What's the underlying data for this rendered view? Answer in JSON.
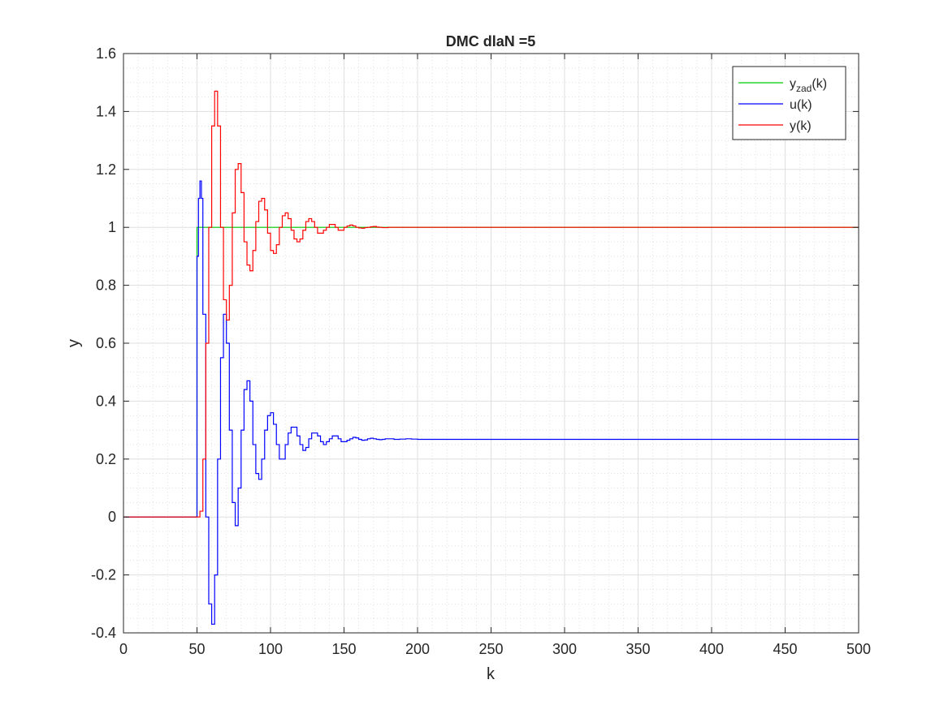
{
  "chart_data": {
    "type": "line",
    "title": "DMC dlaN =5",
    "xlabel": "k",
    "ylabel": "y",
    "xlim": [
      0,
      500
    ],
    "ylim": [
      -0.4,
      1.6
    ],
    "xticks": [
      0,
      50,
      100,
      150,
      200,
      250,
      300,
      350,
      400,
      450,
      500
    ],
    "yticks": [
      -0.4,
      -0.2,
      0,
      0.2,
      0.4,
      0.6,
      0.8,
      1,
      1.2,
      1.4,
      1.6
    ],
    "xtick_labels": [
      "0",
      "50",
      "100",
      "150",
      "200",
      "250",
      "300",
      "350",
      "400",
      "450",
      "500"
    ],
    "ytick_labels": [
      "-0.4",
      "-0.2",
      "0",
      "0.2",
      "0.4",
      "0.6",
      "0.8",
      "1",
      "1.2",
      "1.4",
      "1.6"
    ],
    "grid": true,
    "minor_grid": true,
    "legend_position": "top-right",
    "step_style": "stairs",
    "series": [
      {
        "name": "y_zad(k)",
        "legend_base": "y",
        "legend_sub": "zad",
        "legend_suffix": "(k)",
        "color": "#00cc00",
        "x": [
          0,
          50,
          500
        ],
        "values": [
          0,
          1,
          1
        ]
      },
      {
        "name": "u(k)",
        "legend_base": "u(k)",
        "legend_sub": "",
        "legend_suffix": "",
        "color": "#0000ff",
        "x": [
          0,
          50,
          51,
          52,
          53,
          54,
          56,
          58,
          60,
          62,
          64,
          66,
          68,
          70,
          72,
          74,
          76,
          78,
          80,
          82,
          84,
          86,
          88,
          90,
          92,
          94,
          96,
          98,
          100,
          102,
          104,
          106,
          108,
          110,
          112,
          114,
          116,
          118,
          120,
          122,
          124,
          126,
          128,
          130,
          132,
          134,
          136,
          138,
          140,
          142,
          144,
          146,
          148,
          150,
          152,
          154,
          156,
          158,
          160,
          162,
          164,
          166,
          168,
          170,
          172,
          174,
          176,
          178,
          180,
          184,
          188,
          192,
          196,
          200,
          210,
          220,
          230,
          500
        ],
        "values": [
          0,
          0.9,
          1.1,
          1.16,
          1.1,
          0.7,
          0.0,
          -0.3,
          -0.37,
          -0.2,
          0.2,
          0.55,
          0.7,
          0.6,
          0.3,
          0.05,
          -0.03,
          0.1,
          0.3,
          0.44,
          0.47,
          0.4,
          0.25,
          0.15,
          0.13,
          0.2,
          0.3,
          0.35,
          0.36,
          0.32,
          0.25,
          0.2,
          0.2,
          0.25,
          0.29,
          0.31,
          0.31,
          0.28,
          0.25,
          0.23,
          0.24,
          0.27,
          0.29,
          0.29,
          0.28,
          0.26,
          0.25,
          0.26,
          0.27,
          0.28,
          0.28,
          0.27,
          0.26,
          0.26,
          0.265,
          0.27,
          0.275,
          0.273,
          0.268,
          0.265,
          0.266,
          0.27,
          0.272,
          0.27,
          0.268,
          0.267,
          0.268,
          0.27,
          0.27,
          0.268,
          0.269,
          0.27,
          0.269,
          0.268,
          0.268,
          0.268,
          0.268,
          0.268
        ]
      },
      {
        "name": "y(k)",
        "legend_base": "y(k)",
        "legend_sub": "",
        "legend_suffix": "",
        "color": "#ff0000",
        "x": [
          0,
          52,
          54,
          56,
          58,
          60,
          62,
          64,
          66,
          68,
          70,
          72,
          74,
          76,
          78,
          80,
          82,
          84,
          86,
          88,
          90,
          92,
          94,
          96,
          98,
          100,
          102,
          104,
          106,
          108,
          110,
          112,
          114,
          116,
          118,
          120,
          122,
          124,
          126,
          128,
          130,
          132,
          134,
          136,
          138,
          140,
          142,
          144,
          146,
          148,
          150,
          152,
          154,
          156,
          158,
          160,
          162,
          164,
          166,
          168,
          170,
          172,
          174,
          176,
          178,
          180,
          185,
          190,
          195,
          200,
          210,
          220,
          500
        ],
        "values": [
          0,
          0.02,
          0.2,
          0.6,
          1.0,
          1.35,
          1.47,
          1.35,
          1.0,
          0.75,
          0.68,
          0.8,
          1.05,
          1.2,
          1.22,
          1.12,
          0.95,
          0.87,
          0.85,
          0.92,
          1.02,
          1.09,
          1.1,
          1.06,
          0.98,
          0.92,
          0.91,
          0.94,
          1.0,
          1.04,
          1.05,
          1.03,
          0.99,
          0.96,
          0.95,
          0.96,
          0.99,
          1.02,
          1.03,
          1.02,
          1.0,
          0.98,
          0.98,
          0.99,
          1.0,
          1.01,
          1.01,
          1.0,
          0.99,
          0.99,
          1.0,
          1.005,
          1.008,
          1.005,
          1.0,
          0.998,
          0.997,
          0.999,
          1.0,
          1.002,
          1.003,
          1.001,
          1.0,
          0.999,
          0.999,
          1.0,
          1.0,
          1.0,
          1.0,
          1.0,
          1.0,
          1.0,
          1.0
        ]
      }
    ]
  }
}
